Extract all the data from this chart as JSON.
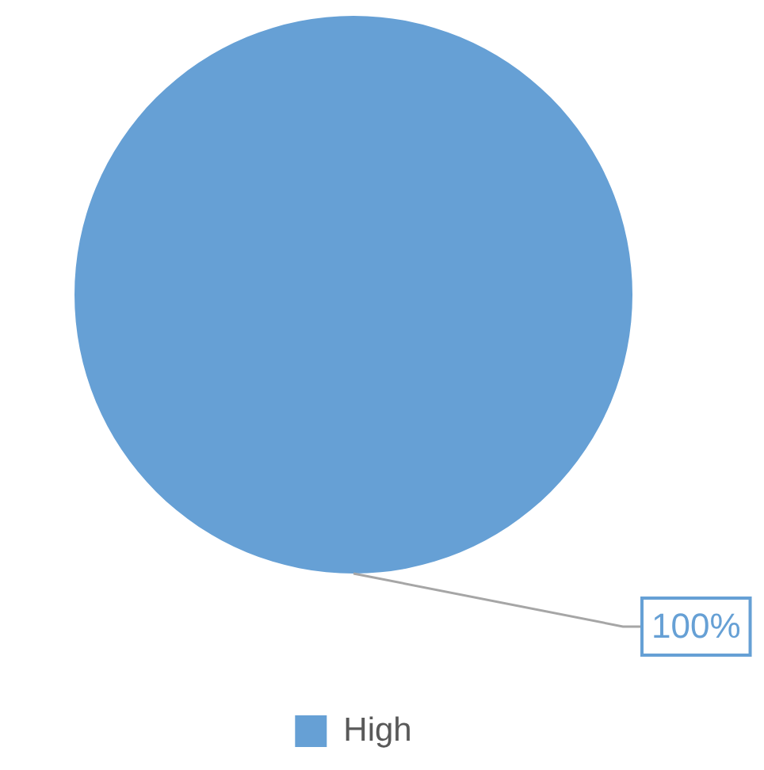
{
  "chart_data": {
    "type": "pie",
    "categories": [
      "High"
    ],
    "values": [
      100
    ],
    "colors": [
      "#66a0d5"
    ],
    "value_labels": [
      "100%"
    ],
    "legend": "bottom"
  }
}
